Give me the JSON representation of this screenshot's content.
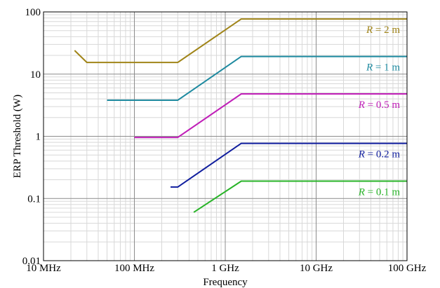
{
  "chart_data": {
    "type": "line",
    "xscale": "log",
    "yscale": "log",
    "xlim_hz": [
      10000000,
      100000000000
    ],
    "ylim": [
      0.01,
      100
    ],
    "xlabel": "Frequency",
    "ylabel": "ERP Threshold (W)",
    "grid": true,
    "x_ticks": [
      {
        "value": 10000000,
        "label": "10 MHz"
      },
      {
        "value": 100000000,
        "label": "100 MHz"
      },
      {
        "value": 1000000000,
        "label": "1 GHz"
      },
      {
        "value": 10000000000,
        "label": "10 GHz"
      },
      {
        "value": 100000000000,
        "label": "100 GHz"
      }
    ],
    "y_ticks": [
      {
        "value": 0.01,
        "label": "0.01"
      },
      {
        "value": 0.1,
        "label": "0.1"
      },
      {
        "value": 1,
        "label": "1"
      },
      {
        "value": 10,
        "label": "10"
      },
      {
        "value": 100,
        "label": "100"
      }
    ],
    "series": [
      {
        "label_var": "R",
        "label_rest": " = 2 m",
        "color": "#a08418",
        "points": [
          [
            22000000,
            24
          ],
          [
            30000000,
            15.4
          ],
          [
            300000000,
            15.4
          ],
          [
            1500000000,
            77
          ],
          [
            100000000000,
            77
          ]
        ]
      },
      {
        "label_var": "R",
        "label_rest": " = 1 m",
        "color": "#1e8aa0",
        "points": [
          [
            50000000,
            3.8
          ],
          [
            300000000,
            3.8
          ],
          [
            1500000000,
            19.2
          ],
          [
            100000000000,
            19.2
          ]
        ]
      },
      {
        "label_var": "R",
        "label_rest": " = 0.5 m",
        "color": "#c020b8",
        "points": [
          [
            100000000,
            0.96
          ],
          [
            300000000,
            0.96
          ],
          [
            1500000000,
            4.8
          ],
          [
            100000000000,
            4.8
          ]
        ]
      },
      {
        "label_var": "R",
        "label_rest": " = 0.2 m",
        "color": "#101e9e",
        "points": [
          [
            250000000,
            0.153
          ],
          [
            300000000,
            0.153
          ],
          [
            1500000000,
            0.77
          ],
          [
            100000000000,
            0.77
          ]
        ]
      },
      {
        "label_var": "R",
        "label_rest": " = 0.1 m",
        "color": "#28b428",
        "points": [
          [
            450000000,
            0.06
          ],
          [
            1500000000,
            0.19
          ],
          [
            100000000000,
            0.19
          ]
        ]
      }
    ]
  }
}
